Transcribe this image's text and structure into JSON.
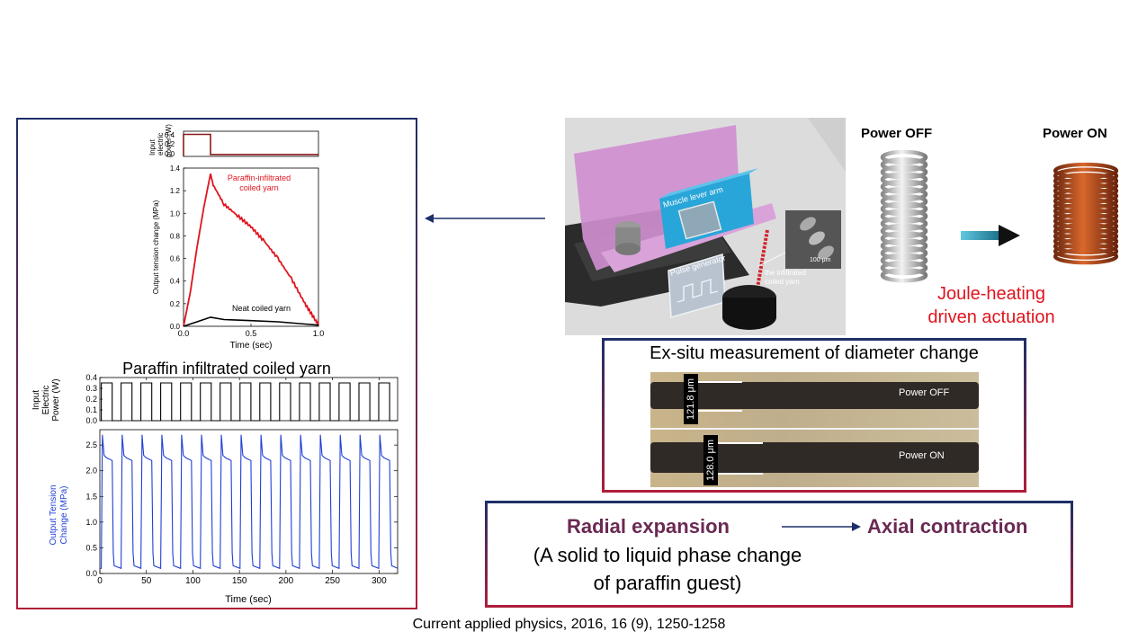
{
  "citation": "Current applied physics, 2016, 16 (9), 1250-1258",
  "left_panel": {
    "top_chart": {
      "power_axis_label": [
        "Input",
        "electric",
        "power (W)"
      ],
      "power_ticks": [
        "0.4",
        "0.2",
        "0.0"
      ],
      "ylabel": "Output tension change (MPa)",
      "y_ticks": [
        "0.0",
        "0.2",
        "0.4",
        "0.6",
        "0.8",
        "1.0",
        "1.2",
        "1.4"
      ],
      "xlabel": "Time (sec)",
      "x_ticks": [
        "0.0",
        "0.5",
        "1.0"
      ],
      "series_red_label": [
        "Paraffin-infiltrated",
        "coiled yarn"
      ],
      "series_black_label": "Neat coiled yarn"
    },
    "bottom_chart": {
      "title": "Paraffin infiltrated coiled yarn",
      "power_axis_label": [
        "Input",
        "Electric",
        "Power (W)"
      ],
      "power_ticks": [
        "0.4",
        "0.3",
        "0.2",
        "0.1",
        "0.0"
      ],
      "ylabel": [
        "Output Tension",
        "Change (MPa)"
      ],
      "y_ticks": [
        "0.0",
        "0.5",
        "1.0",
        "1.5",
        "2.0",
        "2.5"
      ],
      "xlabel": "Time (sec)",
      "x_ticks": [
        "0",
        "50",
        "100",
        "150",
        "200",
        "250",
        "300"
      ]
    }
  },
  "schematic": {
    "muscle_lever_arm": "Muscle lever arm",
    "pulse_generator": "Pulse generator",
    "infiltrated_label": [
      "the infiltrated",
      "coiled yarn"
    ],
    "scale_bar": "100 μm"
  },
  "power_states": {
    "off": "Power OFF",
    "on": "Power ON",
    "caption": [
      "Joule-heating",
      "driven actuation"
    ]
  },
  "exsitu": {
    "title": "Ex-situ measurement of diameter change",
    "off_label": "Power OFF",
    "on_label": "Power ON",
    "off_diameter": "121.8 μm",
    "on_diameter": "128.0 μm"
  },
  "summary": {
    "radial": "Radial expansion",
    "axial": "Axial contraction",
    "explanation": [
      "(A solid to liquid phase change",
      "of paraffin guest)"
    ]
  },
  "colors": {
    "navy": "#1d2f68",
    "crimson": "#b01e3a",
    "red_series": "#e0141e",
    "blue_series": "#1f3fd6",
    "pink_wall": "#cf8fd0",
    "teal_box": "#29a6d9",
    "copper": "#b4471c"
  },
  "chart_data": [
    {
      "type": "line",
      "title": "",
      "xlabel": "Time (sec)",
      "ylabel": "Output tension change (MPa)",
      "xlim": [
        0,
        1.0
      ],
      "ylim": [
        0,
        1.4
      ],
      "power_signal": {
        "x": [
          0,
          0.0,
          0.2,
          0.2,
          1.0
        ],
        "y": [
          0,
          0.35,
          0.35,
          0.03,
          0.03
        ],
        "ylim": [
          0,
          0.4
        ]
      },
      "series": [
        {
          "name": "Paraffin-infiltrated coiled yarn",
          "x": [
            0,
            0.05,
            0.1,
            0.15,
            0.2,
            0.22,
            0.3,
            0.4,
            0.5,
            0.6,
            0.7,
            0.8,
            0.9,
            0.98,
            1.0
          ],
          "y": [
            0,
            0.3,
            0.7,
            1.05,
            1.35,
            1.25,
            1.08,
            0.98,
            0.88,
            0.75,
            0.6,
            0.42,
            0.2,
            0.05,
            0.02
          ]
        },
        {
          "name": "Neat coiled yarn",
          "x": [
            0,
            0.1,
            0.2,
            0.3,
            0.5,
            0.7,
            0.9,
            1.0
          ],
          "y": [
            0,
            0.04,
            0.08,
            0.06,
            0.05,
            0.04,
            0.02,
            0.01
          ]
        }
      ]
    },
    {
      "type": "line",
      "title": "Paraffin infiltrated coiled yarn",
      "xlabel": "Time (sec)",
      "ylabel": "Output Tension Change (MPa)",
      "xlim": [
        0,
        320
      ],
      "ylim": [
        0,
        2.8
      ],
      "power_ylim": [
        0,
        0.4
      ],
      "cycle_period_sec": 21.3,
      "cycles": 15,
      "on_fraction": 0.55,
      "power_high": 0.35,
      "power_low": 0.0,
      "tension_peak": 2.7,
      "tension_plateau": 2.25,
      "tension_low": 0.1
    }
  ]
}
